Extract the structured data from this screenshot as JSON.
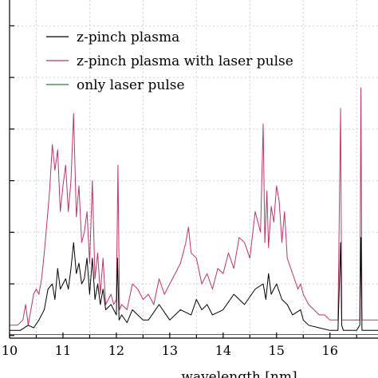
{
  "chart_data": {
    "type": "line",
    "title": "",
    "xlabel": "wavelength [nm]",
    "ylabel": "",
    "xlim": [
      10,
      16.9
    ],
    "ylim": [
      -0.05,
      6.5
    ],
    "grid": true,
    "legend_placement": "top-left",
    "x_ticks": [
      "10",
      "11",
      "12",
      "13",
      "14",
      "15",
      "16"
    ],
    "series": [
      {
        "name": "z-pinch plasma",
        "color": "#000000",
        "x": [
          10.0,
          10.2,
          10.35,
          10.45,
          10.55,
          10.65,
          10.72,
          10.8,
          10.85,
          10.9,
          10.95,
          11.0,
          11.05,
          11.1,
          11.15,
          11.2,
          11.25,
          11.3,
          11.35,
          11.4,
          11.45,
          11.5,
          11.55,
          11.6,
          11.65,
          11.7,
          11.75,
          11.8,
          11.9,
          12.0,
          12.02,
          12.05,
          12.1,
          12.2,
          12.3,
          12.4,
          12.5,
          12.6,
          12.8,
          13.0,
          13.2,
          13.4,
          13.5,
          13.6,
          13.7,
          13.8,
          14.0,
          14.2,
          14.4,
          14.6,
          14.75,
          14.8,
          14.85,
          14.9,
          14.95,
          15.0,
          15.1,
          15.2,
          15.3,
          15.45,
          15.5,
          15.6,
          15.8,
          16.0,
          16.15,
          16.2,
          16.22,
          16.25,
          16.3,
          16.4,
          16.5,
          16.56,
          16.58,
          16.6,
          16.7,
          16.9
        ],
        "values": [
          0.1,
          0.1,
          0.2,
          0.15,
          0.3,
          0.5,
          0.9,
          1.0,
          0.7,
          1.3,
          0.9,
          1.0,
          1.1,
          0.9,
          1.3,
          1.8,
          1.2,
          1.4,
          1.0,
          1.1,
          1.5,
          0.8,
          1.5,
          0.7,
          1.0,
          0.6,
          0.9,
          0.5,
          0.6,
          0.4,
          1.5,
          0.3,
          0.4,
          0.25,
          0.5,
          0.4,
          0.3,
          0.3,
          0.6,
          0.3,
          0.5,
          0.4,
          0.7,
          0.5,
          0.6,
          0.4,
          0.5,
          0.8,
          0.6,
          0.9,
          1.0,
          0.7,
          1.2,
          0.8,
          0.9,
          1.0,
          0.7,
          0.6,
          0.4,
          0.5,
          0.3,
          0.2,
          0.15,
          0.1,
          0.1,
          1.8,
          0.2,
          0.1,
          0.1,
          0.1,
          0.1,
          0.2,
          1.9,
          0.1,
          0.1,
          0.1
        ]
      },
      {
        "name": "z-pinch plasma with laser pulse",
        "color": "#c0326a",
        "x": [
          10.0,
          10.15,
          10.25,
          10.3,
          10.35,
          10.4,
          10.45,
          10.5,
          10.55,
          10.6,
          10.65,
          10.7,
          10.75,
          10.8,
          10.85,
          10.9,
          10.95,
          11.0,
          11.05,
          11.1,
          11.15,
          11.2,
          11.25,
          11.3,
          11.35,
          11.4,
          11.45,
          11.5,
          11.55,
          11.6,
          11.65,
          11.7,
          11.75,
          11.8,
          11.9,
          11.95,
          12.0,
          12.03,
          12.06,
          12.1,
          12.2,
          12.3,
          12.4,
          12.5,
          12.6,
          12.7,
          12.8,
          12.9,
          13.0,
          13.1,
          13.2,
          13.3,
          13.35,
          13.4,
          13.5,
          13.6,
          13.7,
          13.8,
          13.9,
          14.0,
          14.1,
          14.2,
          14.3,
          14.4,
          14.5,
          14.6,
          14.7,
          14.75,
          14.78,
          14.82,
          14.85,
          14.9,
          14.95,
          15.0,
          15.05,
          15.1,
          15.15,
          15.2,
          15.3,
          15.4,
          15.45,
          15.5,
          15.6,
          15.7,
          15.8,
          15.9,
          16.0,
          16.1,
          16.15,
          16.2,
          16.22,
          16.25,
          16.3,
          16.4,
          16.5,
          16.56,
          16.58,
          16.6,
          16.7,
          16.8,
          16.9
        ],
        "values": [
          0.2,
          0.2,
          0.3,
          0.6,
          0.2,
          0.5,
          0.8,
          0.9,
          0.8,
          1.1,
          1.6,
          2.2,
          2.8,
          3.7,
          3.2,
          3.6,
          2.4,
          2.9,
          3.3,
          2.4,
          3.0,
          4.3,
          2.3,
          2.9,
          1.8,
          2.0,
          2.4,
          1.4,
          3.0,
          1.1,
          1.6,
          0.8,
          1.5,
          0.6,
          0.8,
          0.6,
          0.7,
          3.3,
          0.5,
          0.6,
          0.5,
          1.0,
          0.9,
          0.7,
          0.8,
          0.6,
          1.1,
          0.8,
          1.0,
          1.2,
          1.4,
          1.8,
          2.1,
          1.6,
          1.5,
          1.0,
          1.2,
          0.9,
          1.3,
          1.2,
          1.6,
          1.3,
          1.9,
          1.8,
          1.5,
          2.4,
          2.0,
          4.1,
          1.8,
          2.8,
          1.7,
          2.5,
          2.2,
          2.9,
          2.6,
          1.8,
          2.4,
          1.5,
          1.2,
          0.9,
          1.0,
          0.8,
          0.6,
          0.5,
          0.4,
          0.4,
          0.3,
          0.3,
          0.3,
          4.4,
          0.3,
          0.3,
          0.3,
          0.3,
          0.3,
          0.3,
          4.8,
          0.3,
          0.3,
          0.3,
          0.3
        ]
      },
      {
        "name": "only laser pulse",
        "color": "#2e7d32",
        "x": [
          10.0,
          16.9
        ],
        "values": [
          0.02,
          0.02
        ]
      }
    ]
  }
}
